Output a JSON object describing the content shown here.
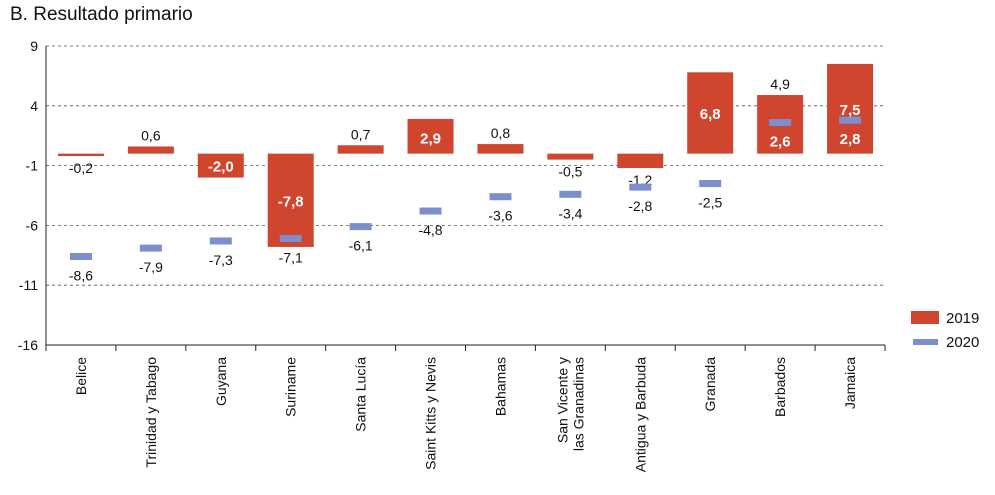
{
  "chart_data": {
    "type": "bar",
    "title": "B. Resultado primario",
    "categories": [
      "Belice",
      "Trinidad y Tabago",
      "Guyana",
      "Suriname",
      "Santa Lucía",
      "Saint Kitts y Nevis",
      "Bahamas",
      "San Vicente y las Granadinas",
      "Antigua y Barbuda",
      "Granada",
      "Barbados",
      "Jamaica"
    ],
    "category_lines": [
      [
        "Belice"
      ],
      [
        "Trinidad y Tabago"
      ],
      [
        "Guyana"
      ],
      [
        "Suriname"
      ],
      [
        "Santa Lucía"
      ],
      [
        "Saint Kitts y Nevis"
      ],
      [
        "Bahamas"
      ],
      [
        "San Vicente y",
        "las Granadinas"
      ],
      [
        "Antigua y Barbuda"
      ],
      [
        "Granada"
      ],
      [
        "Barbados"
      ],
      [
        "Jamaica"
      ]
    ],
    "series": [
      {
        "name": "2019",
        "mark": "bar",
        "color": "#d0452e",
        "values": [
          -0.2,
          0.6,
          -2.0,
          -7.8,
          0.7,
          2.9,
          0.8,
          -0.5,
          -1.2,
          6.8,
          4.9,
          7.5
        ],
        "labels": [
          "-0,2",
          "0,6",
          "-2,0",
          "-7,8",
          "0,7",
          "2,9",
          "0,8",
          "-0,5",
          "-1,2",
          "6,8",
          "4,9",
          "7,5"
        ]
      },
      {
        "name": "2020",
        "mark": "dash",
        "color": "#7b8fcf",
        "values": [
          -8.6,
          -7.9,
          -7.3,
          -7.1,
          -6.1,
          -4.8,
          -3.6,
          -3.4,
          -2.8,
          -2.5,
          2.6,
          2.8
        ],
        "labels": [
          "-8,6",
          "-7,9",
          "-7,3",
          "-7,1",
          "-6,1",
          "-4,8",
          "-3,6",
          "-3,4",
          "-2,8",
          "-2,5",
          "2,6",
          "2,8"
        ]
      }
    ],
    "y_ticks": [
      9,
      4,
      -1,
      -6,
      -11,
      -16
    ],
    "y_tick_labels": [
      "9",
      "4",
      "-1",
      "-6",
      "-11",
      "-16"
    ],
    "ylim": [
      -16,
      9
    ],
    "xlabel": "",
    "ylabel": "",
    "grid": "dashed horizontal",
    "legend": "right"
  }
}
